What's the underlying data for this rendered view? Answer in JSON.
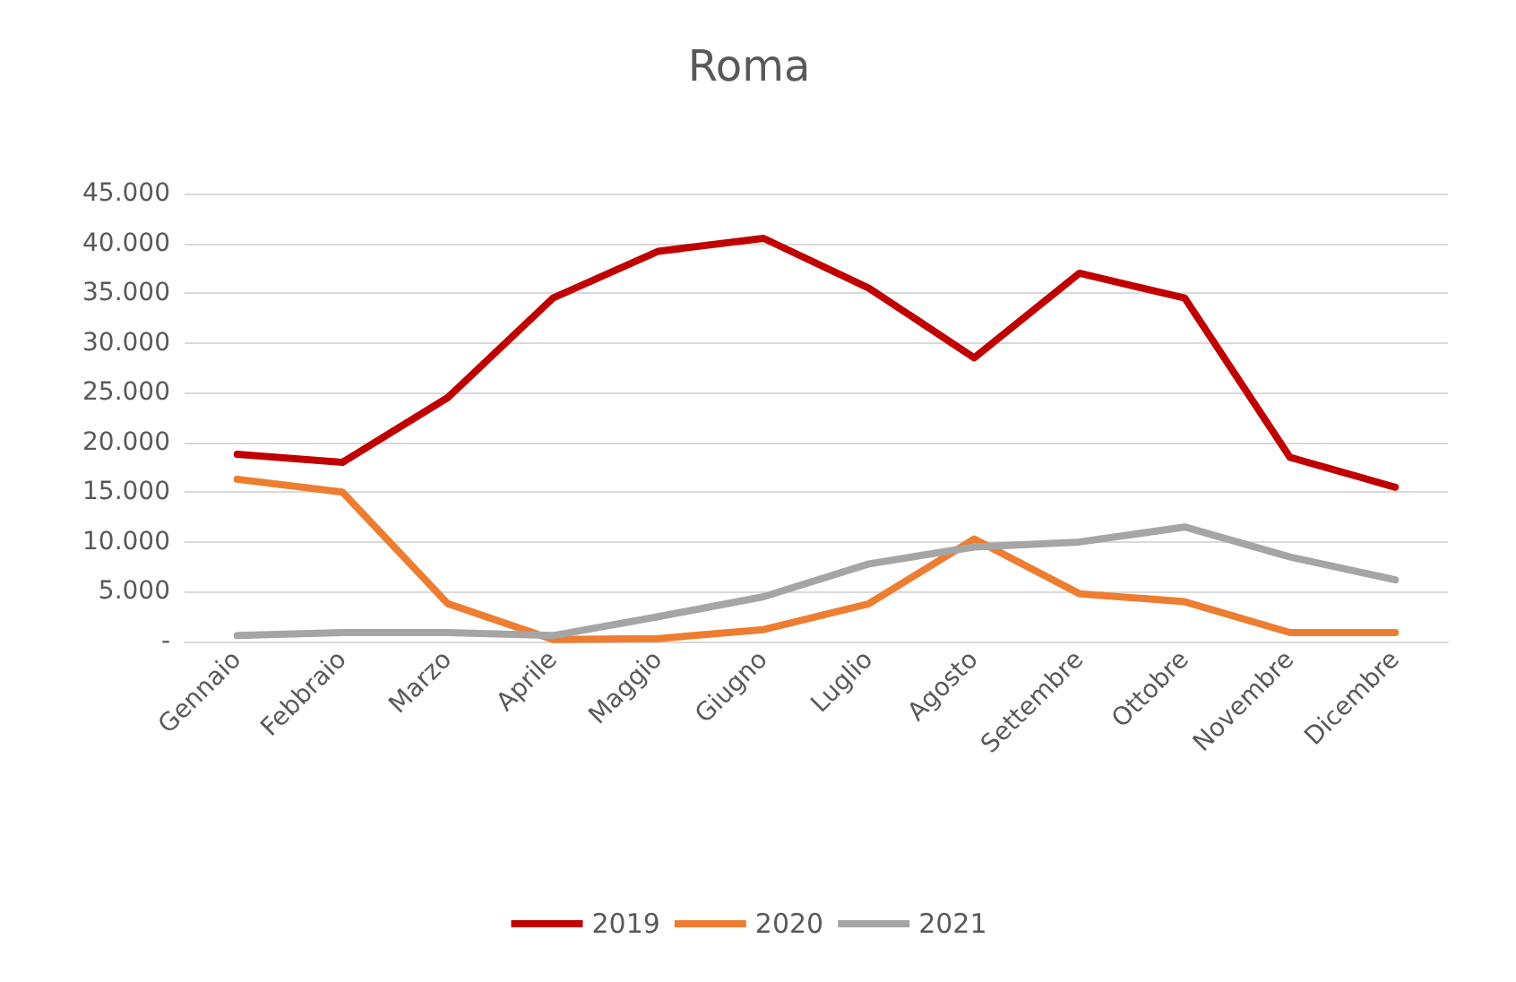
{
  "chart_data": {
    "type": "line",
    "title": "Roma",
    "categories": [
      "Gennaio",
      "Febbraio",
      "Marzo",
      "Aprile",
      "Maggio",
      "Giugno",
      "Luglio",
      "Agosto",
      "Settembre",
      "Ottobre",
      "Novembre",
      "Dicembre"
    ],
    "series": [
      {
        "name": "2019",
        "color": "#c00000",
        "values": [
          18800,
          18000,
          24500,
          34500,
          39200,
          40500,
          35500,
          28500,
          37000,
          34500,
          18500,
          15500
        ]
      },
      {
        "name": "2020",
        "color": "#ed7d31",
        "values": [
          16300,
          15000,
          3800,
          200,
          300,
          1200,
          3800,
          10300,
          4800,
          4000,
          900,
          900
        ]
      },
      {
        "name": "2021",
        "color": "#a5a5a5",
        "values": [
          600,
          900,
          900,
          600,
          2500,
          4500,
          7800,
          9500,
          10000,
          11500,
          8500,
          6200
        ]
      }
    ],
    "ylim": [
      0,
      45000
    ],
    "yticks": [
      {
        "value": 0,
        "label": "-"
      },
      {
        "value": 5000,
        "label": "5.000"
      },
      {
        "value": 10000,
        "label": "10.000"
      },
      {
        "value": 15000,
        "label": "15.000"
      },
      {
        "value": 20000,
        "label": "20.000"
      },
      {
        "value": 25000,
        "label": "25.000"
      },
      {
        "value": 30000,
        "label": "30.000"
      },
      {
        "value": 35000,
        "label": "35.000"
      },
      {
        "value": 40000,
        "label": "40.000"
      },
      {
        "value": 45000,
        "label": "45.000"
      }
    ],
    "grid": "y",
    "legend": "bottom",
    "marker": "none",
    "line_style": "solid"
  }
}
